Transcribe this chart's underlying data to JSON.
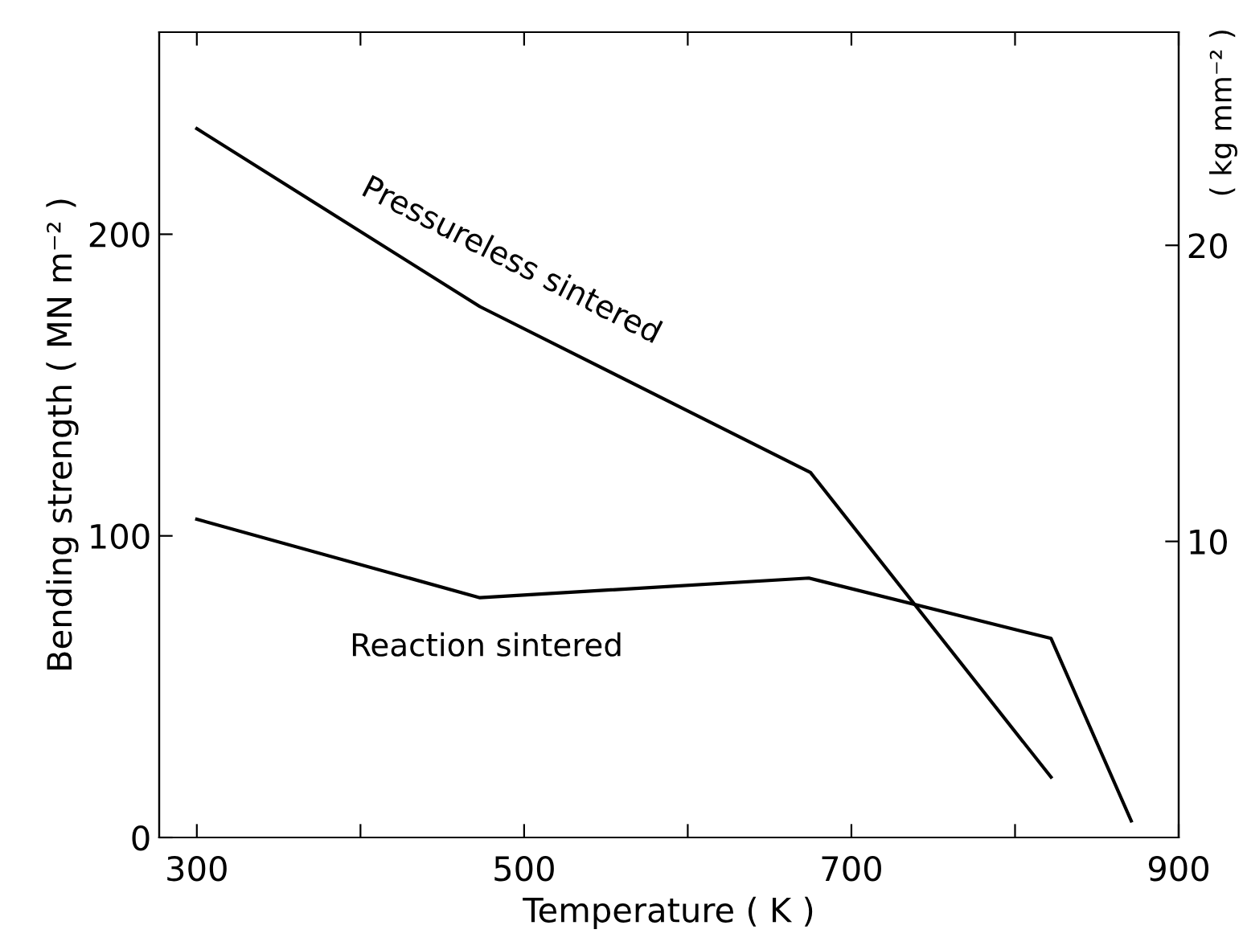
{
  "chart_data": {
    "type": "line",
    "xlabel": "Temperature ( K )",
    "ylabel": "Bending strength ( MN m⁻² )",
    "y2label": "( kg mm⁻² )",
    "series": [
      {
        "name": "Pressureless sintered",
        "color": "#000000",
        "x": [
          300,
          473,
          675,
          822
        ],
        "values": [
          235,
          176,
          121,
          20
        ]
      },
      {
        "name": "Reaction sintered",
        "color": "#000000",
        "x": [
          300,
          473,
          674,
          822,
          871
        ],
        "values": [
          105.5,
          79.5,
          86,
          66,
          5.5
        ]
      }
    ],
    "xlim": [
      277,
      900
    ],
    "xticks": [
      300,
      {
        "value": 400,
        "label": null
      },
      500,
      {
        "value": 600,
        "label": null
      },
      700,
      {
        "value": 800,
        "label": null
      },
      900
    ],
    "ylim": [
      0,
      267
    ],
    "yticks": [
      0,
      100,
      200
    ],
    "y2lim": [
      0,
      27.2
    ],
    "y2ticks": [
      10,
      20
    ],
    "grid": false,
    "legend": false,
    "marker": "none",
    "line_style": "solid"
  }
}
